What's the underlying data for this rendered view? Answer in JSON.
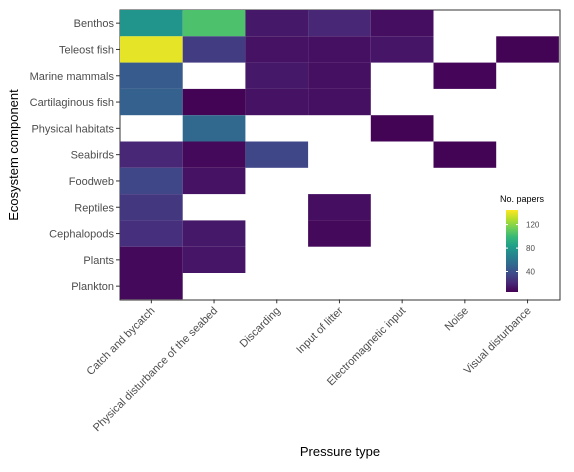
{
  "chart_data": {
    "type": "heatmap",
    "xlabel": "Pressure type",
    "ylabel": "Ecosystem component",
    "x_categories": [
      "Catch and bycatch",
      "Physical disturbance of the seabed",
      "Discarding",
      "Input of litter",
      "Electromagnetic input",
      "Noise",
      "Visual disturbance"
    ],
    "y_categories": [
      "Benthos",
      "Teleost fish",
      "Marine mammals",
      "Cartilaginous fish",
      "Physical habitats",
      "Seabirds",
      "Foodweb",
      "Reptiles",
      "Cephalopods",
      "Plants",
      "Plankton"
    ],
    "cells": [
      {
        "y": "Benthos",
        "x": "Catch and bycatch",
        "value": 78
      },
      {
        "y": "Benthos",
        "x": "Physical disturbance of the seabed",
        "value": 105
      },
      {
        "y": "Benthos",
        "x": "Discarding",
        "value": 14
      },
      {
        "y": "Benthos",
        "x": "Input of litter",
        "value": 20
      },
      {
        "y": "Benthos",
        "x": "Electromagnetic input",
        "value": 10
      },
      {
        "y": "Teleost fish",
        "x": "Catch and bycatch",
        "value": 140
      },
      {
        "y": "Teleost fish",
        "x": "Physical disturbance of the seabed",
        "value": 30
      },
      {
        "y": "Teleost fish",
        "x": "Discarding",
        "value": 12
      },
      {
        "y": "Teleost fish",
        "x": "Input of litter",
        "value": 11
      },
      {
        "y": "Teleost fish",
        "x": "Electromagnetic input",
        "value": 13
      },
      {
        "y": "Teleost fish",
        "x": "Visual disturbance",
        "value": 6
      },
      {
        "y": "Marine mammals",
        "x": "Catch and bycatch",
        "value": 45
      },
      {
        "y": "Marine mammals",
        "x": "Discarding",
        "value": 14
      },
      {
        "y": "Marine mammals",
        "x": "Input of litter",
        "value": 11
      },
      {
        "y": "Marine mammals",
        "x": "Noise",
        "value": 7
      },
      {
        "y": "Cartilaginous fish",
        "x": "Catch and bycatch",
        "value": 48
      },
      {
        "y": "Cartilaginous fish",
        "x": "Physical disturbance of the seabed",
        "value": 6
      },
      {
        "y": "Cartilaginous fish",
        "x": "Discarding",
        "value": 12
      },
      {
        "y": "Cartilaginous fish",
        "x": "Input of litter",
        "value": 11
      },
      {
        "y": "Physical habitats",
        "x": "Physical disturbance of the seabed",
        "value": 52
      },
      {
        "y": "Physical habitats",
        "x": "Electromagnetic input",
        "value": 6
      },
      {
        "y": "Seabirds",
        "x": "Catch and bycatch",
        "value": 20
      },
      {
        "y": "Seabirds",
        "x": "Physical disturbance of the seabed",
        "value": 8
      },
      {
        "y": "Seabirds",
        "x": "Discarding",
        "value": 35
      },
      {
        "y": "Seabirds",
        "x": "Noise",
        "value": 6
      },
      {
        "y": "Foodweb",
        "x": "Catch and bycatch",
        "value": 35
      },
      {
        "y": "Foodweb",
        "x": "Physical disturbance of the seabed",
        "value": 12
      },
      {
        "y": "Reptiles",
        "x": "Catch and bycatch",
        "value": 28
      },
      {
        "y": "Reptiles",
        "x": "Input of litter",
        "value": 10
      },
      {
        "y": "Cephalopods",
        "x": "Catch and bycatch",
        "value": 24
      },
      {
        "y": "Cephalopods",
        "x": "Physical disturbance of the seabed",
        "value": 14
      },
      {
        "y": "Cephalopods",
        "x": "Input of litter",
        "value": 8
      },
      {
        "y": "Plants",
        "x": "Catch and bycatch",
        "value": 8
      },
      {
        "y": "Plants",
        "x": "Physical disturbance of the seabed",
        "value": 13
      },
      {
        "y": "Plankton",
        "x": "Catch and bycatch",
        "value": 8
      }
    ],
    "legend": {
      "title": "No. papers",
      "breaks": [
        40,
        80,
        120
      ],
      "range": [
        5,
        145
      ],
      "placement": "right",
      "colormap": [
        "#440154",
        "#482878",
        "#3e4989",
        "#31688e",
        "#26828e",
        "#1f9e89",
        "#35b779",
        "#6ece58",
        "#b5de2b",
        "#fde725"
      ]
    },
    "grid": false
  }
}
